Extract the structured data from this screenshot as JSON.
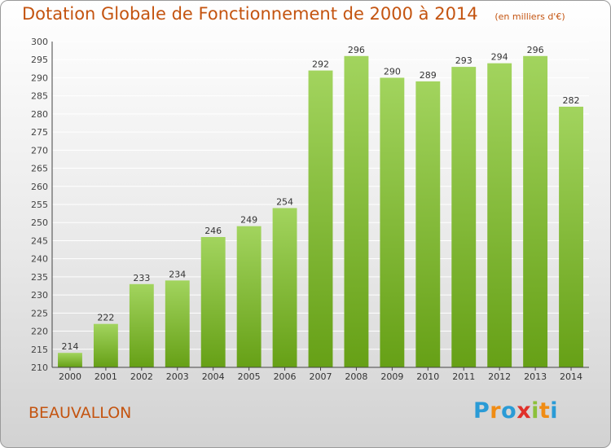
{
  "title": "Dotation Globale de Fonctionnement de 2000 à 2014",
  "unit": "(en milliers d'€)",
  "city": "BEAUVALLON",
  "logo": {
    "text": "Proxiti",
    "letters": [
      {
        "ch": "P",
        "color": "#2a9bd6"
      },
      {
        "ch": "r",
        "color": "#f08c14"
      },
      {
        "ch": "o",
        "color": "#2a9bd6"
      },
      {
        "ch": "x",
        "color": "#e0302a"
      },
      {
        "ch": "i",
        "color": "#8cc03a"
      },
      {
        "ch": "t",
        "color": "#f08c14"
      },
      {
        "ch": "i",
        "color": "#2a9bd6"
      }
    ]
  },
  "colors": {
    "bar_light": "#a2d45e",
    "bar_dark": "#66a016",
    "text": "#c45410",
    "grid": "#ffffff"
  },
  "chart_data": {
    "type": "bar",
    "categories": [
      "2000",
      "2001",
      "2002",
      "2003",
      "2004",
      "2005",
      "2006",
      "2007",
      "2008",
      "2009",
      "2010",
      "2011",
      "2012",
      "2013",
      "2014"
    ],
    "values": [
      214,
      222,
      233,
      234,
      246,
      249,
      254,
      292,
      296,
      290,
      289,
      293,
      294,
      296,
      282
    ],
    "ylim": [
      210,
      300
    ],
    "yticks": [
      210,
      215,
      220,
      225,
      230,
      235,
      240,
      245,
      250,
      255,
      260,
      265,
      270,
      275,
      280,
      285,
      290,
      295,
      300
    ],
    "grid": true
  }
}
